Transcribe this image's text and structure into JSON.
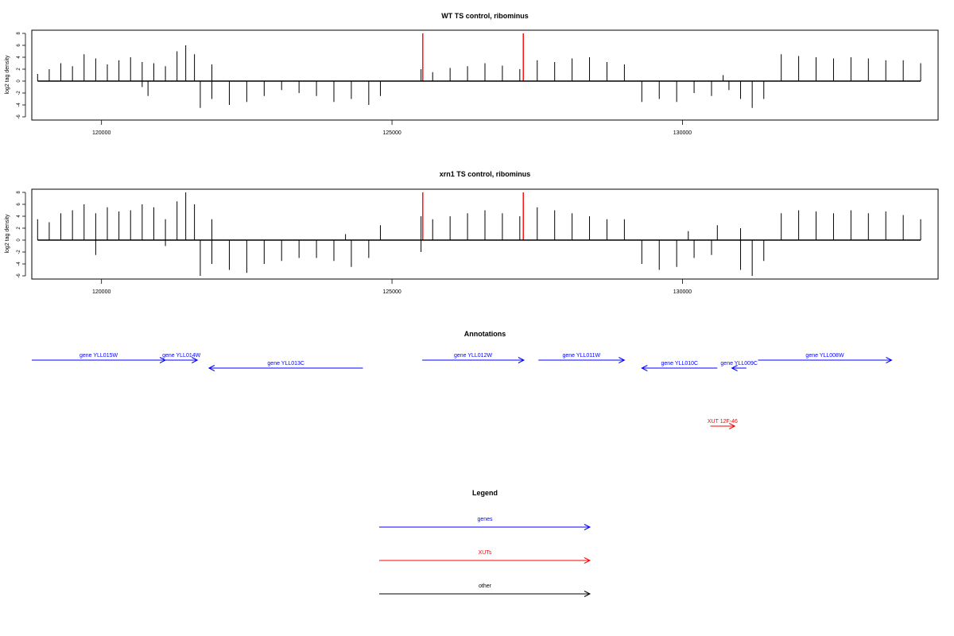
{
  "chart_data": [
    {
      "type": "bar",
      "title": "WT TS control, ribominus",
      "ylabel": "log2 tag density",
      "xlabel": "",
      "xlim": [
        118800,
        134400
      ],
      "ylim": [
        -6,
        8
      ],
      "y_ticks": [
        8,
        6,
        4,
        2,
        0,
        -2,
        -4,
        -6
      ],
      "x_ticks": [
        120000,
        125000,
        130000
      ],
      "x_tick_labels": [
        "120000",
        "125000",
        "130000"
      ],
      "grid": false,
      "series": [
        {
          "strand": "plus",
          "color": "#000000",
          "values": [
            [
              118900,
              1.2
            ],
            [
              119100,
              2.0
            ],
            [
              119300,
              3.0
            ],
            [
              119500,
              2.5
            ],
            [
              119700,
              4.5
            ],
            [
              119900,
              3.8
            ],
            [
              120100,
              2.8
            ],
            [
              120300,
              3.5
            ],
            [
              120500,
              4.0
            ],
            [
              120700,
              3.2
            ],
            [
              120900,
              3.0
            ],
            [
              121100,
              2.5
            ],
            [
              121300,
              5.0
            ],
            [
              121450,
              6.0
            ],
            [
              121600,
              4.5
            ],
            [
              121900,
              2.8
            ],
            [
              125500,
              2.0
            ],
            [
              125700,
              1.5
            ],
            [
              126000,
              2.2
            ],
            [
              126300,
              2.5
            ],
            [
              126600,
              3.0
            ],
            [
              126900,
              2.6
            ],
            [
              127200,
              2.0
            ],
            [
              127500,
              3.5
            ],
            [
              127800,
              3.2
            ],
            [
              128100,
              3.8
            ],
            [
              128400,
              4.0
            ],
            [
              128700,
              3.2
            ],
            [
              129000,
              2.8
            ],
            [
              130700,
              1.0
            ],
            [
              131700,
              4.5
            ],
            [
              132000,
              4.2
            ],
            [
              132300,
              4.0
            ],
            [
              132600,
              3.8
            ],
            [
              132900,
              4.0
            ],
            [
              133200,
              3.8
            ],
            [
              133500,
              3.5
            ],
            [
              133800,
              3.5
            ],
            [
              134100,
              3.0
            ]
          ]
        },
        {
          "strand": "minus",
          "color": "#000000",
          "values": [
            [
              120700,
              -1.0
            ],
            [
              120800,
              -2.5
            ],
            [
              121700,
              -4.5
            ],
            [
              121900,
              -3.0
            ],
            [
              122200,
              -4.0
            ],
            [
              122500,
              -3.5
            ],
            [
              122800,
              -2.5
            ],
            [
              123100,
              -1.5
            ],
            [
              123400,
              -2.0
            ],
            [
              123700,
              -2.5
            ],
            [
              124000,
              -3.5
            ],
            [
              124300,
              -3.0
            ],
            [
              124600,
              -4.0
            ],
            [
              124800,
              -2.5
            ],
            [
              129300,
              -3.5
            ],
            [
              129600,
              -3.0
            ],
            [
              129900,
              -3.5
            ],
            [
              130200,
              -2.0
            ],
            [
              130500,
              -2.5
            ],
            [
              130800,
              -1.5
            ],
            [
              131000,
              -3.0
            ],
            [
              131200,
              -4.5
            ],
            [
              131400,
              -3.0
            ]
          ]
        },
        {
          "strand": "highlight",
          "color": "#ff0000",
          "values": [
            [
              125530,
              8
            ],
            [
              127260,
              8
            ]
          ]
        }
      ]
    },
    {
      "type": "bar",
      "title": "xrn1 TS control, ribominus",
      "ylabel": "log2 tag density",
      "xlabel": "",
      "xlim": [
        118800,
        134400
      ],
      "ylim": [
        -6,
        8
      ],
      "y_ticks": [
        8,
        6,
        4,
        2,
        0,
        -2,
        -4,
        -6
      ],
      "x_ticks": [
        120000,
        125000,
        130000
      ],
      "x_tick_labels": [
        "120000",
        "125000",
        "130000"
      ],
      "grid": false,
      "series": [
        {
          "strand": "plus",
          "color": "#000000",
          "values": [
            [
              118900,
              3.5
            ],
            [
              119100,
              3.0
            ],
            [
              119300,
              4.5
            ],
            [
              119500,
              5.0
            ],
            [
              119700,
              6.0
            ],
            [
              119900,
              4.5
            ],
            [
              120100,
              5.5
            ],
            [
              120300,
              4.8
            ],
            [
              120500,
              5.0
            ],
            [
              120700,
              6.0
            ],
            [
              120900,
              5.5
            ],
            [
              121100,
              3.5
            ],
            [
              121300,
              6.5
            ],
            [
              121450,
              8.0
            ],
            [
              121600,
              6.0
            ],
            [
              121900,
              3.5
            ],
            [
              124200,
              1.0
            ],
            [
              124800,
              2.5
            ],
            [
              125500,
              4.0
            ],
            [
              125700,
              3.5
            ],
            [
              126000,
              4.0
            ],
            [
              126300,
              4.5
            ],
            [
              126600,
              5.0
            ],
            [
              126900,
              4.5
            ],
            [
              127200,
              4.0
            ],
            [
              127500,
              5.5
            ],
            [
              127800,
              5.0
            ],
            [
              128100,
              4.5
            ],
            [
              128400,
              4.0
            ],
            [
              128700,
              3.5
            ],
            [
              129000,
              3.5
            ],
            [
              130100,
              1.5
            ],
            [
              130600,
              2.5
            ],
            [
              131000,
              2.0
            ],
            [
              131700,
              4.5
            ],
            [
              132000,
              5.0
            ],
            [
              132300,
              4.8
            ],
            [
              132600,
              4.5
            ],
            [
              132900,
              5.0
            ],
            [
              133200,
              4.5
            ],
            [
              133500,
              4.8
            ],
            [
              133800,
              4.2
            ],
            [
              134100,
              3.5
            ]
          ]
        },
        {
          "strand": "minus",
          "color": "#000000",
          "values": [
            [
              119900,
              -2.5
            ],
            [
              121100,
              -1.0
            ],
            [
              121700,
              -6.0
            ],
            [
              121900,
              -4.0
            ],
            [
              122200,
              -5.0
            ],
            [
              122500,
              -5.5
            ],
            [
              122800,
              -4.0
            ],
            [
              123100,
              -3.5
            ],
            [
              123400,
              -3.0
            ],
            [
              123700,
              -3.0
            ],
            [
              124000,
              -3.5
            ],
            [
              124300,
              -4.5
            ],
            [
              124600,
              -3.0
            ],
            [
              125500,
              -2.0
            ],
            [
              129300,
              -4.0
            ],
            [
              129600,
              -5.0
            ],
            [
              129900,
              -4.5
            ],
            [
              130200,
              -3.0
            ],
            [
              130500,
              -2.5
            ],
            [
              131000,
              -5.0
            ],
            [
              131200,
              -6.0
            ],
            [
              131400,
              -3.5
            ]
          ]
        },
        {
          "strand": "highlight",
          "color": "#ff0000",
          "values": [
            [
              125530,
              8
            ],
            [
              127260,
              8
            ]
          ]
        }
      ]
    }
  ],
  "annotations": {
    "title": "Annotations",
    "genes": [
      {
        "label": "gene YLL015W",
        "start": 118800,
        "end": 121100,
        "strand": "+",
        "row": 0,
        "color": "#0000ff"
      },
      {
        "label": "gene YLL014W",
        "start": 121100,
        "end": 121650,
        "strand": "+",
        "row": 0,
        "color": "#0000ff"
      },
      {
        "label": "gene YLL013C",
        "start": 121850,
        "end": 124500,
        "strand": "-",
        "row": 1,
        "color": "#0000ff"
      },
      {
        "label": "gene YLL012W",
        "start": 125520,
        "end": 127270,
        "strand": "+",
        "row": 0,
        "color": "#0000ff"
      },
      {
        "label": "gene YLL011W",
        "start": 127520,
        "end": 129000,
        "strand": "+",
        "row": 0,
        "color": "#0000ff"
      },
      {
        "label": "gene YLL010C",
        "start": 129300,
        "end": 130600,
        "strand": "-",
        "row": 1,
        "color": "#0000ff"
      },
      {
        "label": "gene YLL009C",
        "start": 130850,
        "end": 131100,
        "strand": "-",
        "row": 1,
        "color": "#0000ff"
      },
      {
        "label": "gene YLL008W",
        "start": 131300,
        "end": 133600,
        "strand": "+",
        "row": 0,
        "color": "#0000ff"
      },
      {
        "label": "XUT 12F-46",
        "start": 130480,
        "end": 130900,
        "strand": "+",
        "row": 2,
        "color": "#ff0000"
      }
    ]
  },
  "legend": {
    "title": "Legend",
    "items": [
      {
        "label": "genes",
        "color": "#0000ff"
      },
      {
        "label": "XUTs",
        "color": "#ff0000"
      },
      {
        "label": "other",
        "color": "#000000"
      }
    ]
  }
}
